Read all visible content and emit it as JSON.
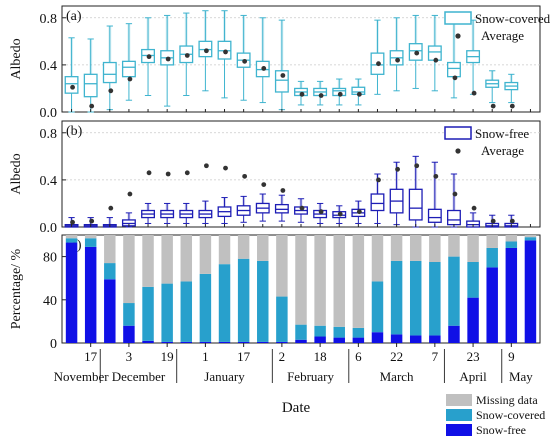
{
  "chart_data": [
    {
      "panel_label": "(a)",
      "type": "box",
      "ylabel": "Albedo",
      "ylim": [
        0,
        0.9
      ],
      "yticks": [
        0.0,
        0.4,
        0.8
      ],
      "grid": "horizontal dotted",
      "legend_position": "top-right",
      "legend": {
        "box_label": "Snow-covered",
        "mean_label": "Average"
      },
      "color": "#3fb4cf",
      "boxes": [
        {
          "q1": 0.16,
          "median": 0.24,
          "q3": 0.3,
          "mean": 0.21,
          "lo": 0.0,
          "hi": 0.63
        },
        {
          "q1": 0.13,
          "median": 0.24,
          "q3": 0.32,
          "mean": 0.05,
          "lo": 0.0,
          "hi": 0.62
        },
        {
          "q1": 0.25,
          "median": 0.32,
          "q3": 0.42,
          "mean": 0.18,
          "lo": 0.02,
          "hi": 0.73
        },
        {
          "q1": 0.3,
          "median": 0.38,
          "q3": 0.43,
          "mean": 0.28,
          "lo": 0.1,
          "hi": 0.75
        },
        {
          "q1": 0.42,
          "median": 0.48,
          "q3": 0.53,
          "mean": 0.47,
          "lo": 0.14,
          "hi": 0.8
        },
        {
          "q1": 0.4,
          "median": 0.46,
          "q3": 0.52,
          "mean": 0.45,
          "lo": 0.05,
          "hi": 0.82
        },
        {
          "q1": 0.42,
          "median": 0.49,
          "q3": 0.56,
          "mean": 0.48,
          "lo": 0.14,
          "hi": 0.84
        },
        {
          "q1": 0.47,
          "median": 0.53,
          "q3": 0.6,
          "mean": 0.52,
          "lo": 0.18,
          "hi": 0.86
        },
        {
          "q1": 0.45,
          "median": 0.52,
          "q3": 0.6,
          "mean": 0.51,
          "lo": 0.12,
          "hi": 0.86
        },
        {
          "q1": 0.38,
          "median": 0.44,
          "q3": 0.5,
          "mean": 0.43,
          "lo": 0.1,
          "hi": 0.82
        },
        {
          "q1": 0.3,
          "median": 0.36,
          "q3": 0.43,
          "mean": 0.37,
          "lo": 0.08,
          "hi": 0.8
        },
        {
          "q1": 0.17,
          "median": 0.27,
          "q3": 0.35,
          "mean": 0.31,
          "lo": 0.02,
          "hi": 0.78
        },
        {
          "q1": 0.14,
          "median": 0.17,
          "q3": 0.2,
          "mean": 0.15,
          "lo": 0.06,
          "hi": 0.26
        },
        {
          "q1": 0.14,
          "median": 0.17,
          "q3": 0.2,
          "mean": 0.14,
          "lo": 0.06,
          "hi": 0.26
        },
        {
          "q1": 0.14,
          "median": 0.18,
          "q3": 0.2,
          "mean": 0.15,
          "lo": 0.06,
          "hi": 0.28
        },
        {
          "q1": 0.15,
          "median": 0.17,
          "q3": 0.21,
          "mean": 0.15,
          "lo": 0.06,
          "hi": 0.28
        },
        {
          "q1": 0.32,
          "median": 0.4,
          "q3": 0.5,
          "mean": 0.41,
          "lo": 0.15,
          "hi": 0.78
        },
        {
          "q1": 0.4,
          "median": 0.46,
          "q3": 0.52,
          "mean": 0.44,
          "lo": 0.18,
          "hi": 0.8
        },
        {
          "q1": 0.44,
          "median": 0.52,
          "q3": 0.58,
          "mean": 0.5,
          "lo": 0.2,
          "hi": 0.82
        },
        {
          "q1": 0.44,
          "median": 0.51,
          "q3": 0.56,
          "mean": 0.44,
          "lo": 0.18,
          "hi": 0.82
        },
        {
          "q1": 0.3,
          "median": 0.37,
          "q3": 0.42,
          "mean": 0.29,
          "lo": 0.12,
          "hi": 0.78
        },
        {
          "q1": 0.42,
          "median": 0.47,
          "q3": 0.52,
          "mean": 0.16,
          "lo": 0.15,
          "hi": 0.78
        },
        {
          "q1": 0.21,
          "median": 0.24,
          "q3": 0.27,
          "mean": 0.05,
          "lo": 0.08,
          "hi": 0.35
        },
        {
          "q1": 0.19,
          "median": 0.22,
          "q3": 0.25,
          "mean": 0.05,
          "lo": 0.08,
          "hi": 0.32
        }
      ]
    },
    {
      "panel_label": "(b)",
      "type": "box",
      "ylabel": "Albedo",
      "ylim": [
        0,
        0.9
      ],
      "yticks": [
        0.0,
        0.4,
        0.8
      ],
      "grid": "horizontal dotted",
      "legend_position": "top-right",
      "legend": {
        "box_label": "Snow-free",
        "mean_label": "Average"
      },
      "color": "#1d1db5",
      "boxes": [
        {
          "q1": 0.0,
          "median": 0.01,
          "q3": 0.02,
          "mean": 0.04,
          "lo": 0.0,
          "hi": 0.08
        },
        {
          "q1": 0.0,
          "median": 0.01,
          "q3": 0.02,
          "mean": 0.05,
          "lo": 0.0,
          "hi": 0.08
        },
        {
          "q1": 0.0,
          "median": 0.01,
          "q3": 0.02,
          "mean": 0.16,
          "lo": 0.0,
          "hi": 0.08
        },
        {
          "q1": 0.01,
          "median": 0.03,
          "q3": 0.06,
          "mean": 0.28,
          "lo": 0.0,
          "hi": 0.12
        },
        {
          "q1": 0.08,
          "median": 0.11,
          "q3": 0.14,
          "mean": 0.46,
          "lo": 0.03,
          "hi": 0.2
        },
        {
          "q1": 0.08,
          "median": 0.11,
          "q3": 0.14,
          "mean": 0.45,
          "lo": 0.03,
          "hi": 0.2
        },
        {
          "q1": 0.08,
          "median": 0.11,
          "q3": 0.14,
          "mean": 0.46,
          "lo": 0.03,
          "hi": 0.2
        },
        {
          "q1": 0.08,
          "median": 0.11,
          "q3": 0.14,
          "mean": 0.52,
          "lo": 0.03,
          "hi": 0.22
        },
        {
          "q1": 0.09,
          "median": 0.13,
          "q3": 0.17,
          "mean": 0.5,
          "lo": 0.03,
          "hi": 0.25
        },
        {
          "q1": 0.1,
          "median": 0.14,
          "q3": 0.18,
          "mean": 0.43,
          "lo": 0.04,
          "hi": 0.26
        },
        {
          "q1": 0.12,
          "median": 0.16,
          "q3": 0.2,
          "mean": 0.36,
          "lo": 0.05,
          "hi": 0.28
        },
        {
          "q1": 0.12,
          "median": 0.15,
          "q3": 0.19,
          "mean": 0.31,
          "lo": 0.05,
          "hi": 0.27
        },
        {
          "q1": 0.11,
          "median": 0.14,
          "q3": 0.17,
          "mean": 0.16,
          "lo": 0.04,
          "hi": 0.24
        },
        {
          "q1": 0.08,
          "median": 0.11,
          "q3": 0.14,
          "mean": 0.13,
          "lo": 0.03,
          "hi": 0.2
        },
        {
          "q1": 0.08,
          "median": 0.1,
          "q3": 0.13,
          "mean": 0.11,
          "lo": 0.03,
          "hi": 0.18
        },
        {
          "q1": 0.09,
          "median": 0.12,
          "q3": 0.15,
          "mean": 0.13,
          "lo": 0.03,
          "hi": 0.22
        },
        {
          "q1": 0.14,
          "median": 0.2,
          "q3": 0.28,
          "mean": 0.4,
          "lo": 0.03,
          "hi": 0.45
        },
        {
          "q1": 0.12,
          "median": 0.22,
          "q3": 0.32,
          "mean": 0.49,
          "lo": 0.02,
          "hi": 0.55
        },
        {
          "q1": 0.06,
          "median": 0.16,
          "q3": 0.32,
          "mean": 0.52,
          "lo": 0.0,
          "hi": 0.6
        },
        {
          "q1": 0.04,
          "median": 0.08,
          "q3": 0.15,
          "mean": 0.43,
          "lo": 0.0,
          "hi": 0.55
        },
        {
          "q1": 0.02,
          "median": 0.06,
          "q3": 0.14,
          "mean": 0.28,
          "lo": 0.0,
          "hi": 0.45
        },
        {
          "q1": 0.0,
          "median": 0.02,
          "q3": 0.05,
          "mean": 0.16,
          "lo": 0.0,
          "hi": 0.12
        },
        {
          "q1": 0.0,
          "median": 0.01,
          "q3": 0.03,
          "mean": 0.05,
          "lo": 0.0,
          "hi": 0.1
        },
        {
          "q1": 0.0,
          "median": 0.01,
          "q3": 0.03,
          "mean": 0.05,
          "lo": 0.0,
          "hi": 0.1
        }
      ]
    },
    {
      "panel_label": "(c)",
      "type": "stacked_bar",
      "ylabel": "Percentage/ %",
      "xlabel": "Date",
      "ylim": [
        0,
        100
      ],
      "yticks": [
        0,
        40,
        80
      ],
      "legend_position": "bottom-right",
      "series": [
        {
          "name": "Snow-free",
          "color": "#1010e6",
          "values": [
            93,
            89,
            59,
            16,
            2,
            1,
            1,
            1,
            1,
            1,
            1,
            1,
            3,
            6,
            5,
            5,
            10,
            8,
            7,
            7,
            16,
            42,
            70,
            88,
            95
          ]
        },
        {
          "name": "Snow-covered",
          "color": "#28a0cc",
          "values": [
            4,
            8,
            15,
            21,
            50,
            54,
            56,
            63,
            72,
            77,
            75,
            42,
            14,
            10,
            10,
            9,
            47,
            68,
            69,
            68,
            64,
            33,
            18,
            6,
            3
          ]
        },
        {
          "name": "Missing data",
          "color": "#c0c0c0",
          "values": [
            3,
            3,
            26,
            63,
            48,
            45,
            43,
            36,
            27,
            22,
            24,
            57,
            83,
            84,
            85,
            86,
            43,
            24,
            24,
            25,
            20,
            25,
            12,
            6,
            2
          ]
        }
      ],
      "day_ticks": [
        "17",
        "3",
        "19",
        "1",
        "17",
        "2",
        "18",
        "6",
        "22",
        "7",
        "23",
        "9"
      ],
      "months": [
        "November",
        "December",
        "January",
        "February",
        "March",
        "April",
        "May"
      ]
    }
  ]
}
